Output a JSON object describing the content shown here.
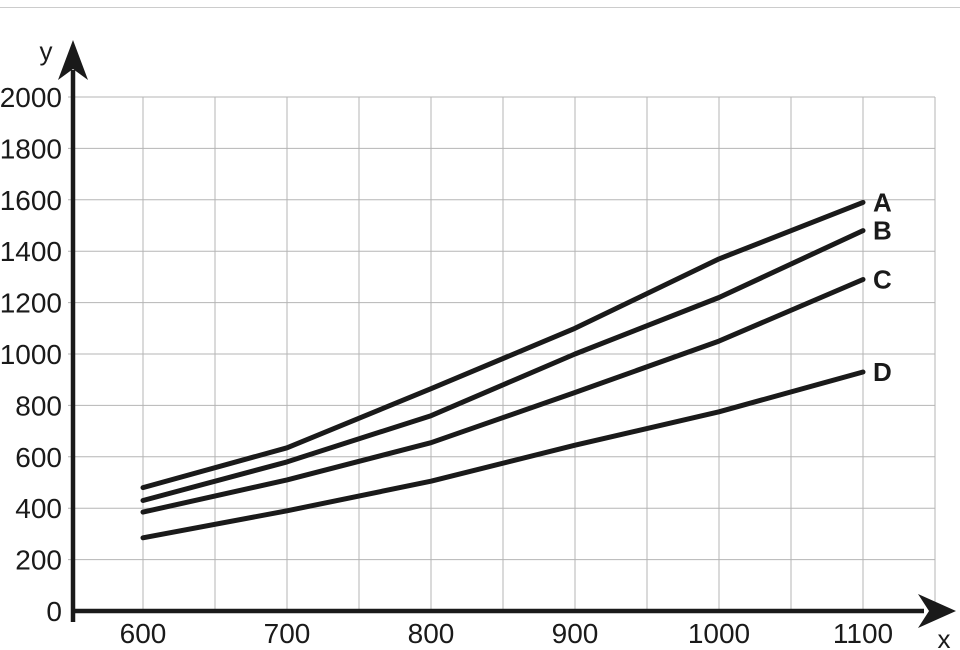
{
  "figure": {
    "background": "#ffffff",
    "top_rule_color": "#cccccc",
    "axis_color": "#1a1a1a",
    "grid_color": "#b5b5b5",
    "curve_color": "#1a1a1a",
    "text_color": "#1a1a1a"
  },
  "chart_data": {
    "type": "line",
    "title": "",
    "xlabel": "x",
    "ylabel": "y",
    "x": [
      600,
      700,
      800,
      900,
      1000,
      1100
    ],
    "series": [
      {
        "name": "A",
        "values": [
          480,
          635,
          865,
          1100,
          1370,
          1590
        ]
      },
      {
        "name": "B",
        "values": [
          430,
          580,
          760,
          1000,
          1220,
          1480
        ]
      },
      {
        "name": "C",
        "values": [
          385,
          510,
          655,
          850,
          1050,
          1290
        ]
      },
      {
        "name": "D",
        "values": [
          285,
          390,
          505,
          645,
          775,
          930
        ]
      }
    ],
    "xlim": [
      550,
      1150
    ],
    "ylim": [
      0,
      2000
    ],
    "x_tick_labels": [
      "600",
      "700",
      "800",
      "900",
      "1000",
      "1100"
    ],
    "y_tick_labels": [
      "0",
      "200",
      "400",
      "600",
      "800",
      "1000",
      "1200",
      "1400",
      "1600",
      "1800",
      "2000"
    ],
    "x_grid_step": 50,
    "y_grid_step": 200,
    "grid": true,
    "legend_position": "labels at right end of each line"
  }
}
